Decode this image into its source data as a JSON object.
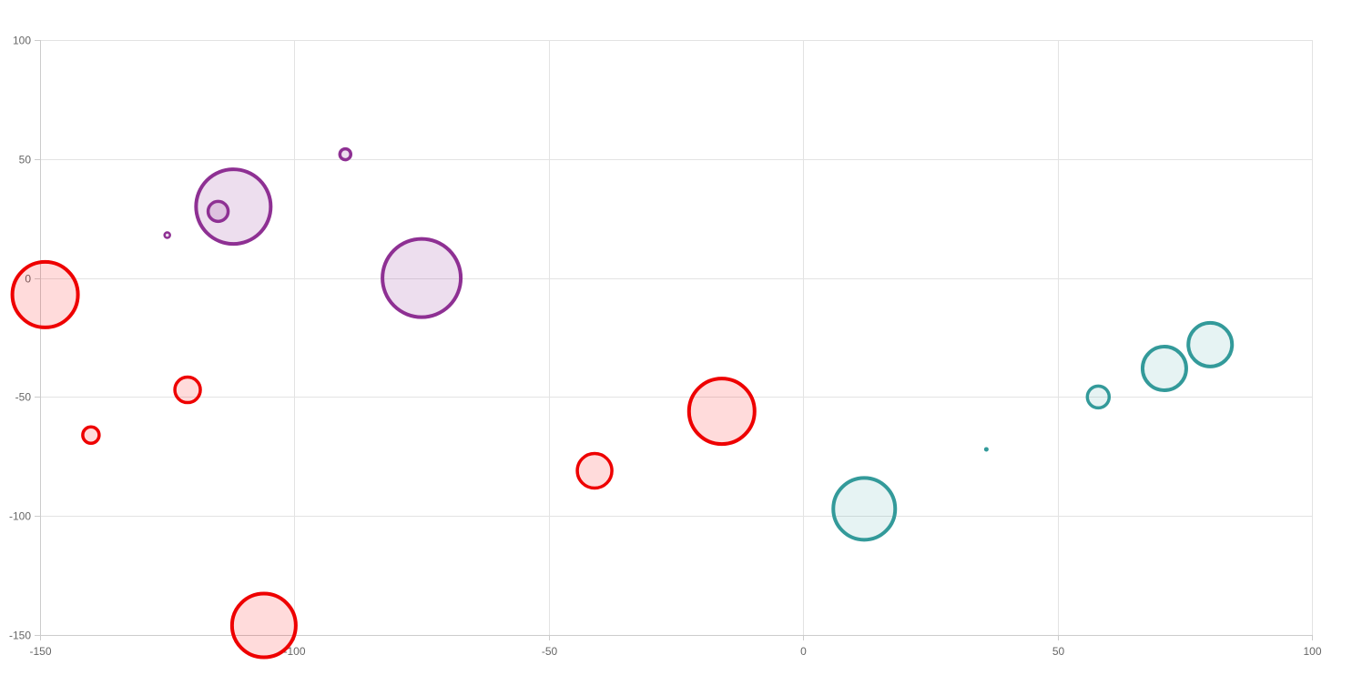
{
  "chart_data": {
    "type": "bubble",
    "xlim": [
      -150,
      100
    ],
    "ylim": [
      -150,
      100
    ],
    "x_ticks": [
      -150,
      -100,
      -50,
      0,
      50,
      100
    ],
    "y_ticks": [
      100,
      50,
      0,
      -50,
      -100,
      -150
    ],
    "grid": true,
    "legend": "none",
    "series": [
      {
        "color": "#ee0000",
        "fill": "rgba(255,0,0,0.14)",
        "points": [
          {
            "x": -149,
            "y": -7,
            "r": 36
          },
          {
            "x": -140,
            "y": -66,
            "r": 9
          },
          {
            "x": -121,
            "y": -47,
            "r": 14
          },
          {
            "x": -106,
            "y": -146,
            "r": 35
          },
          {
            "x": -41,
            "y": -81,
            "r": 19
          },
          {
            "x": -16,
            "y": -56,
            "r": 36
          }
        ]
      },
      {
        "color": "#8e3093",
        "fill": "rgba(142,48,147,0.16)",
        "points": [
          {
            "x": -125,
            "y": 18,
            "r": 3
          },
          {
            "x": -115,
            "y": 28,
            "r": 11
          },
          {
            "x": -112,
            "y": 30,
            "r": 41
          },
          {
            "x": -90,
            "y": 52,
            "r": 6
          },
          {
            "x": -75,
            "y": 0,
            "r": 43
          }
        ]
      },
      {
        "color": "#339a9a",
        "fill": "rgba(51,154,154,0.12)",
        "points": [
          {
            "x": 12,
            "y": -97,
            "r": 34
          },
          {
            "x": 36,
            "y": -72,
            "r": 2
          },
          {
            "x": 58,
            "y": -50,
            "r": 12
          },
          {
            "x": 71,
            "y": -38,
            "r": 24
          },
          {
            "x": 80,
            "y": -28,
            "r": 24
          }
        ]
      }
    ]
  }
}
